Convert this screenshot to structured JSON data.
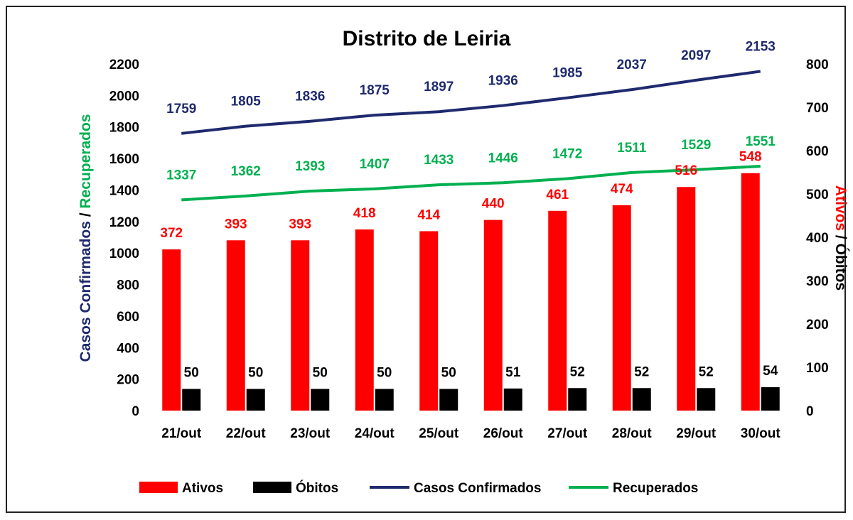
{
  "chart_data": {
    "type": "bar",
    "title": "Distrito de Leiria",
    "categories": [
      "21/out",
      "22/out",
      "23/out",
      "24/out",
      "25/out",
      "26/out",
      "27/out",
      "28/out",
      "29/out",
      "30/out"
    ],
    "series": [
      {
        "name": "Ativos",
        "kind": "bar",
        "axis": "right",
        "color": "#ff0000",
        "values": [
          372,
          393,
          393,
          418,
          414,
          440,
          461,
          474,
          516,
          548
        ]
      },
      {
        "name": "Óbitos",
        "kind": "bar",
        "axis": "right",
        "color": "#000000",
        "values": [
          50,
          50,
          50,
          50,
          50,
          51,
          52,
          52,
          52,
          54
        ]
      },
      {
        "name": "Casos Confirmados",
        "kind": "line",
        "axis": "left",
        "color": "#1f2a6e",
        "values": [
          1759,
          1805,
          1836,
          1875,
          1897,
          1936,
          1985,
          2037,
          2097,
          2153
        ]
      },
      {
        "name": "Recuperados",
        "kind": "line",
        "axis": "left",
        "color": "#00b050",
        "values": [
          1337,
          1362,
          1393,
          1407,
          1433,
          1446,
          1472,
          1511,
          1529,
          1551
        ]
      }
    ],
    "y_left": {
      "label_part1": "Casos Confirmados",
      "label_sep": " / ",
      "label_part2": "Recuperados",
      "label_part1_color": "#1f2a6e",
      "label_part2_color": "#00b050",
      "range": [
        0,
        2200
      ],
      "ticks": [
        "0",
        "200",
        "400",
        "600",
        "800",
        "1000",
        "1200",
        "1400",
        "1600",
        "1800",
        "2000",
        "2200"
      ]
    },
    "y_right": {
      "label_part1": "Ativos",
      "label_sep": " / ",
      "label_part2": "Óbitos",
      "label_part1_color": "#ff0000",
      "label_part2_color": "#000000",
      "range": [
        0,
        800
      ],
      "ticks": [
        "0",
        "100",
        "200",
        "300",
        "400",
        "500",
        "600",
        "700",
        "800"
      ]
    },
    "grid": false,
    "legend_position": "bottom"
  }
}
